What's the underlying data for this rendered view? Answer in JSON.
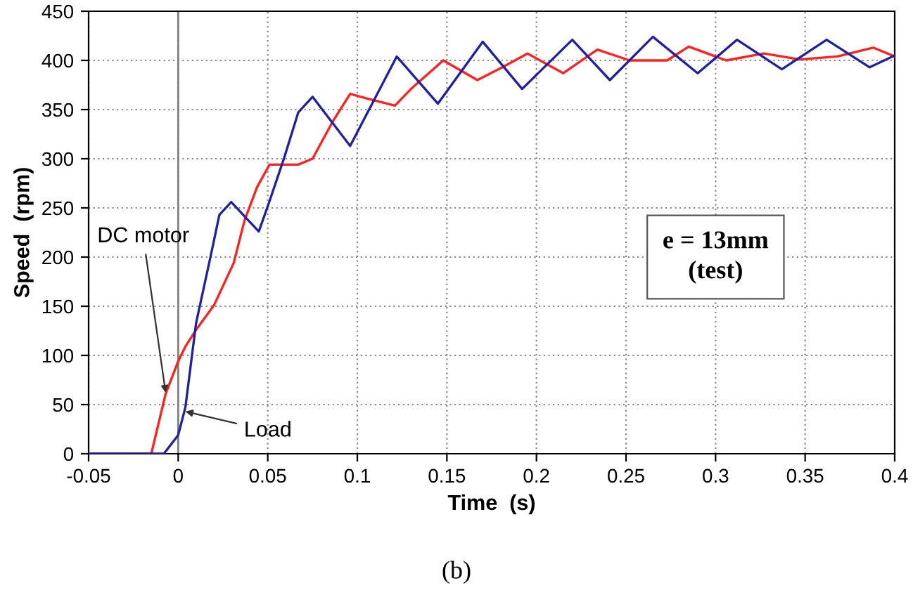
{
  "chart_data": {
    "type": "line",
    "xlabel": "Time  (s)",
    "ylabel": "Speed  (rpm)",
    "xlim": [
      -0.05,
      0.4
    ],
    "xticks": [
      -0.05,
      0,
      0.05,
      0.1,
      0.15,
      0.2,
      0.25,
      0.3,
      0.35,
      0.4
    ],
    "ylim": [
      0,
      450
    ],
    "yticks": [
      0,
      50,
      100,
      150,
      200,
      250,
      300,
      350,
      400,
      450
    ],
    "grid": true,
    "marker": "none",
    "line_style": "solid",
    "ref_lines": [
      {
        "axis": "x",
        "value": 0,
        "color": "#808080",
        "line_style": "solid"
      }
    ],
    "series": [
      {
        "color": "#ff2020",
        "x": [
          -0.05,
          -0.015,
          -0.007,
          0,
          0.004,
          0.01,
          0.02,
          0.031,
          0.037,
          0.044,
          0.051,
          0.067,
          0.075,
          0.086,
          0.096,
          0.106,
          0.121,
          0.13,
          0.148,
          0.167,
          0.181,
          0.195,
          0.215,
          0.234,
          0.252,
          0.273,
          0.285,
          0.306,
          0.327,
          0.347,
          0.368,
          0.388,
          0.4
        ],
        "values": [
          0,
          0,
          61,
          94,
          109,
          126,
          151,
          194,
          237,
          271,
          294,
          294,
          300,
          337,
          366,
          361,
          354,
          371,
          400,
          380,
          393,
          407,
          387,
          411,
          400,
          400,
          414,
          400,
          407,
          401,
          404,
          413,
          404
        ]
      },
      {
        "color": "#2020a0",
        "x": [
          -0.05,
          -0.008,
          0,
          0.004,
          0.01,
          0.018,
          0.023,
          0.0296,
          0.045,
          0.051,
          0.059,
          0.067,
          0.075,
          0.096,
          0.122,
          0.145,
          0.17,
          0.192,
          0.22,
          0.241,
          0.265,
          0.29,
          0.312,
          0.337,
          0.362,
          0.386,
          0.4
        ],
        "values": [
          0,
          0,
          19,
          47,
          133,
          200,
          243,
          256,
          226,
          257,
          300,
          347,
          363,
          313,
          404,
          356,
          419,
          371,
          421,
          380,
          424,
          387,
          421,
          391,
          421,
          393,
          405
        ]
      }
    ],
    "annotations": [
      {
        "text": "DC motor",
        "x": -0.007,
        "y": 62
      },
      {
        "text": "Load",
        "x": 0.004,
        "y": 43
      },
      "e = 13mm\n(test)",
      "(b)"
    ]
  }
}
